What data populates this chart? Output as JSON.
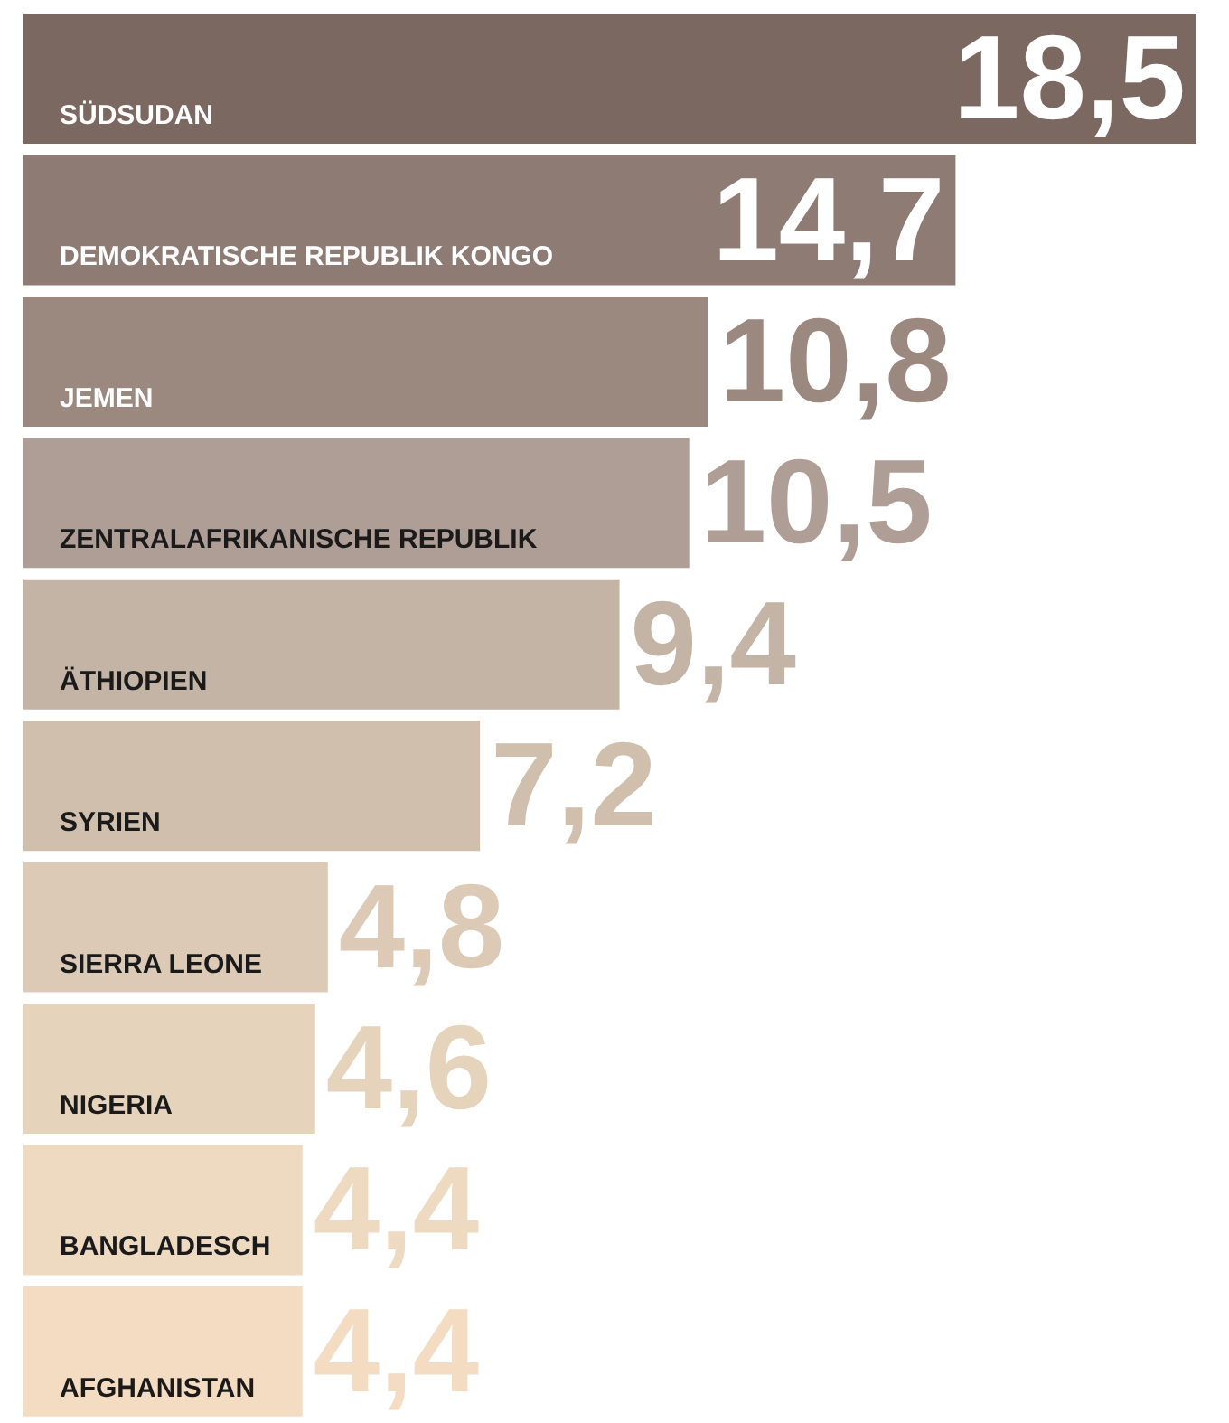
{
  "chart_data": {
    "type": "bar",
    "categories": [
      "SÜDSUDAN",
      "DEMOKRATISCHE REPUBLIK KONGO",
      "JEMEN",
      "ZENTRALAFRIKANISCHE REPUBLIK",
      "ÄTHIOPIEN",
      "SYRIEN",
      "SIERRA LEONE",
      "NIGERIA",
      "BANGLADESCH",
      "AFGHANISTAN"
    ],
    "values": [
      18.5,
      14.7,
      10.8,
      10.5,
      9.4,
      7.2,
      4.8,
      4.6,
      4.4,
      4.4
    ],
    "value_labels": [
      "18,5",
      "14,7",
      "10,8",
      "10,5",
      "9,4",
      "7,2",
      "4,8",
      "4,6",
      "4,4",
      "4,4"
    ],
    "colors": [
      "#7a6861",
      "#8d7b74",
      "#9b8980",
      "#ae9e95",
      "#c4b4a6",
      "#d1bfae",
      "#dccab6",
      "#e6d3bb",
      "#eed9c1",
      "#f4dcc2"
    ],
    "orientation": "horizontal"
  }
}
